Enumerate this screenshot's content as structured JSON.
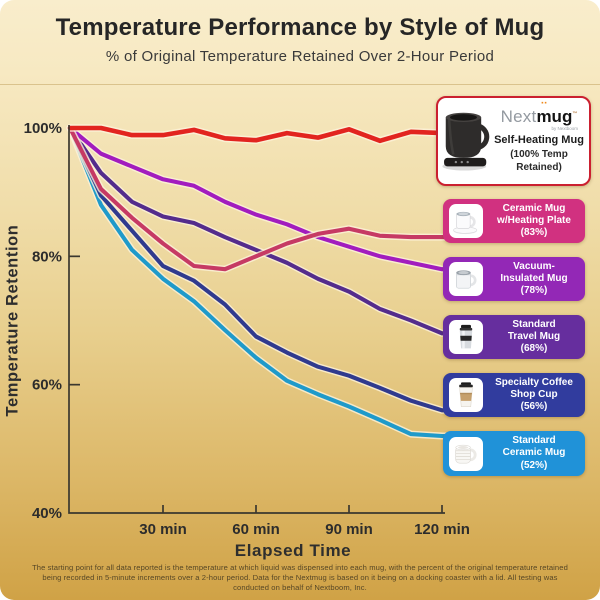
{
  "chart_data": {
    "type": "line",
    "title": "Temperature Performance by Style of Mug",
    "subtitle": "% of Original Temperature Retained Over 2-Hour Period",
    "xlabel": "Elapsed Time",
    "ylabel": "Temperature Retention",
    "x_unit": "minutes",
    "xlim": [
      0,
      120
    ],
    "ylim": [
      40,
      100
    ],
    "grid": false,
    "legend_position": "right",
    "x": [
      0,
      10,
      20,
      30,
      40,
      50,
      60,
      70,
      80,
      90,
      100,
      110,
      120
    ],
    "x_ticks": [
      {
        "t": 30,
        "label": "30 min"
      },
      {
        "t": 60,
        "label": "60 min"
      },
      {
        "t": 90,
        "label": "90 min"
      },
      {
        "t": 120,
        "label": "120 min"
      }
    ],
    "y_ticks": [
      {
        "p": 100,
        "label": "100%",
        "tick": false
      },
      {
        "p": 80,
        "label": "80%",
        "tick": true
      },
      {
        "p": 60,
        "label": "60%",
        "tick": true
      },
      {
        "p": 40,
        "label": "40%",
        "tick": false
      }
    ],
    "series": [
      {
        "name": "Nextmug Self-Heating Mug",
        "final_retained": "100%",
        "color": "#e2241f",
        "values": [
          100,
          100,
          98.9,
          98.9,
          99.7,
          98.4,
          98.1,
          99.2,
          98.5,
          99.8,
          98.0,
          99.4,
          99.2
        ]
      },
      {
        "name": "Ceramic Mug w/Heating Plate",
        "final_retained": "83%",
        "color": "#c63a64",
        "values": [
          100,
          90.5,
          86,
          82,
          78.5,
          78,
          80,
          82,
          83.5,
          84.3,
          83.2,
          83,
          83
        ]
      },
      {
        "name": "Vacuum-Insulated Mug",
        "final_retained": "78%",
        "color": "#a21cbe",
        "values": [
          100,
          96,
          94,
          92,
          91,
          88.5,
          86.5,
          85,
          83,
          81.5,
          80,
          79,
          78
        ]
      },
      {
        "name": "Standard Travel Mug",
        "final_retained": "68%",
        "color": "#542c8c",
        "values": [
          100,
          93,
          88.5,
          86.2,
          85.2,
          83,
          81,
          79,
          76.5,
          74.5,
          71.8,
          70,
          68
        ]
      },
      {
        "name": "Specialty Coffee Shop Cup",
        "final_retained": "56%",
        "color": "#303a8e",
        "values": [
          100,
          89.5,
          84,
          78.5,
          76.2,
          72.5,
          67.5,
          65,
          62.8,
          61.4,
          59.5,
          57.5,
          56
        ]
      },
      {
        "name": "Standard Ceramic Mug",
        "final_retained": "52%",
        "color": "#1f9aca",
        "values": [
          100,
          88,
          81,
          76.5,
          73,
          68.5,
          64.2,
          60.6,
          58.5,
          56.6,
          54.5,
          52.3,
          52
        ]
      }
    ]
  },
  "legend": {
    "nextmug": {
      "logo_next": "Next",
      "logo_mug": "mug",
      "logo_by": "by Nextboom",
      "name": "Self-Heating Mug",
      "pct1": "(100% Temp",
      "pct2": "Retained)",
      "border_color": "#cb2030"
    },
    "items": [
      {
        "line1": "Ceramic Mug",
        "line2": "w/Heating Plate",
        "pct": "(83%)",
        "bg": "#d13180"
      },
      {
        "line1": "Vacuum-",
        "line2": "Insulated Mug",
        "pct": "(78%)",
        "bg": "#9328b6"
      },
      {
        "line1": "Standard",
        "line2": "Travel Mug",
        "pct": "(68%)",
        "bg": "#662e9e"
      },
      {
        "line1": "Specialty Coffee",
        "line2": "Shop Cup",
        "pct": "(56%)",
        "bg": "#313c9e"
      },
      {
        "line1": "Standard",
        "line2": "Ceramic Mug",
        "pct": "(52%)",
        "bg": "#2092d8"
      }
    ]
  },
  "footer": {
    "disclaimer": "The starting point for all data reported is the temperature at which liquid was dispensed into each mug, with the percent of the original temperature retained being recorded in 5-minute increments over a 2-hour period.  Data for the Nextmug is based on it being on a docking coaster with a lid.  All testing was conducted on behalf of Nextboom, Inc."
  }
}
